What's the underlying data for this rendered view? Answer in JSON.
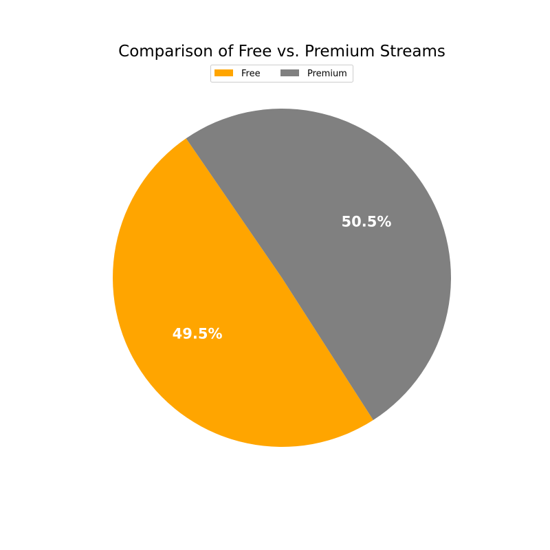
{
  "chart_data": {
    "type": "pie",
    "title": "Comparison of Free vs. Premium Streams",
    "legend_placement": "upper-center",
    "slices": [
      {
        "name": "Free",
        "percent": 49.5,
        "label": "49.5%",
        "color": "#FFA500"
      },
      {
        "name": "Premium",
        "percent": 50.5,
        "label": "50.5%",
        "color": "#808080"
      }
    ]
  }
}
